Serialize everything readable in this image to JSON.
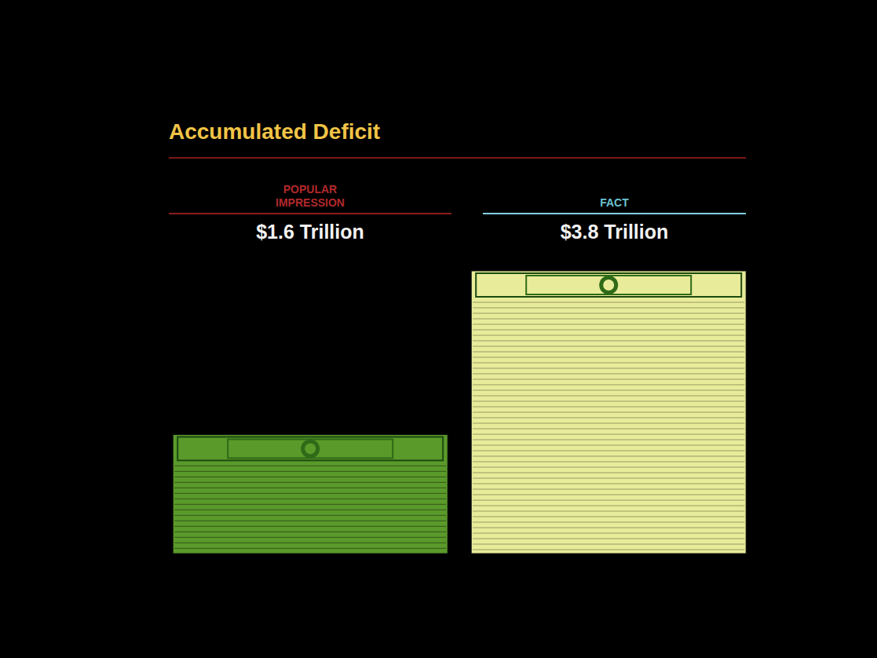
{
  "chart_data": {
    "type": "bar",
    "title": "Accumulated Deficit",
    "categories": [
      "POPULAR IMPRESSION",
      "FACT"
    ],
    "values": [
      1.6,
      3.8
    ],
    "value_labels": [
      "$1.6 Trillion",
      "$3.8 Trillion"
    ],
    "colors": [
      "#5a9a2a",
      "#e8ec9a"
    ],
    "data_labels": true,
    "tick_labels": false
  }
}
